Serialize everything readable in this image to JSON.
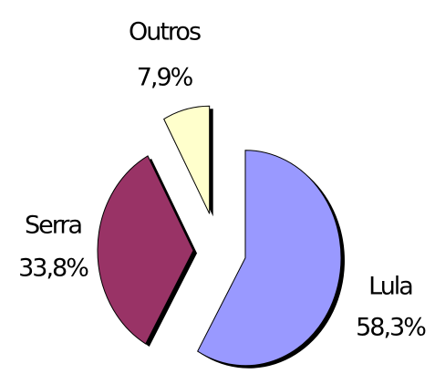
{
  "chart_data": {
    "type": "pie",
    "categories": [
      "Lula",
      "Serra",
      "Outros"
    ],
    "values": [
      58.3,
      33.8,
      7.9
    ],
    "value_labels": [
      "58,3%",
      "33,8%",
      "7,9%"
    ],
    "colors": [
      "#9999ff",
      "#993366",
      "#ffffcc"
    ]
  }
}
